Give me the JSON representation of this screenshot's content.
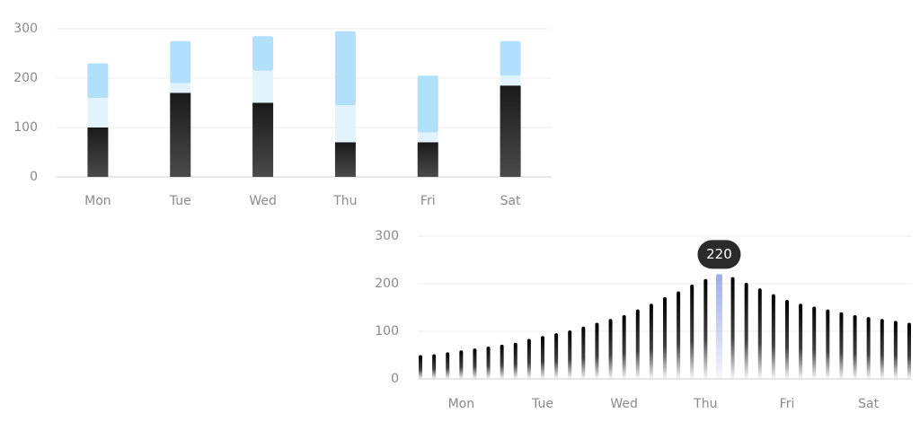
{
  "chart_data": [
    {
      "type": "stacked_bar",
      "categories": [
        "Mon",
        "Tue",
        "Wed",
        "Thu",
        "Fri",
        "Sat"
      ],
      "series": [
        {
          "color": "#2a2a2a",
          "values": [
            100,
            170,
            150,
            70,
            70,
            185
          ]
        },
        {
          "color": "#e1f4fd",
          "values": [
            60,
            20,
            65,
            75,
            20,
            20
          ]
        },
        {
          "color": "#b0e0fb",
          "values": [
            70,
            85,
            70,
            150,
            115,
            70
          ]
        }
      ],
      "ylim": [
        0,
        300
      ],
      "yticks": [
        0,
        100,
        200,
        300
      ],
      "grid": true
    },
    {
      "type": "bar",
      "categories": [
        null,
        null,
        null,
        "Mon",
        null,
        null,
        null,
        null,
        null,
        "Tue",
        null,
        null,
        null,
        null,
        null,
        "Wed",
        null,
        null,
        null,
        null,
        null,
        "Thu",
        null,
        null,
        null,
        null,
        null,
        "Fri",
        null,
        null,
        null,
        null,
        null,
        "Sat",
        null,
        null,
        null
      ],
      "values": [
        50,
        52,
        56,
        60,
        64,
        68,
        72,
        76,
        84,
        90,
        96,
        102,
        110,
        118,
        126,
        134,
        146,
        158,
        172,
        184,
        198,
        210,
        220,
        214,
        202,
        190,
        178,
        166,
        158,
        152,
        146,
        140,
        134,
        130,
        126,
        122,
        118
      ],
      "color": "#111111",
      "highlight_color": "#9eabf2",
      "highlighted": 22,
      "ylim": [
        0,
        300
      ],
      "yticks": [
        0,
        100,
        200,
        300
      ],
      "grid": true
    }
  ]
}
